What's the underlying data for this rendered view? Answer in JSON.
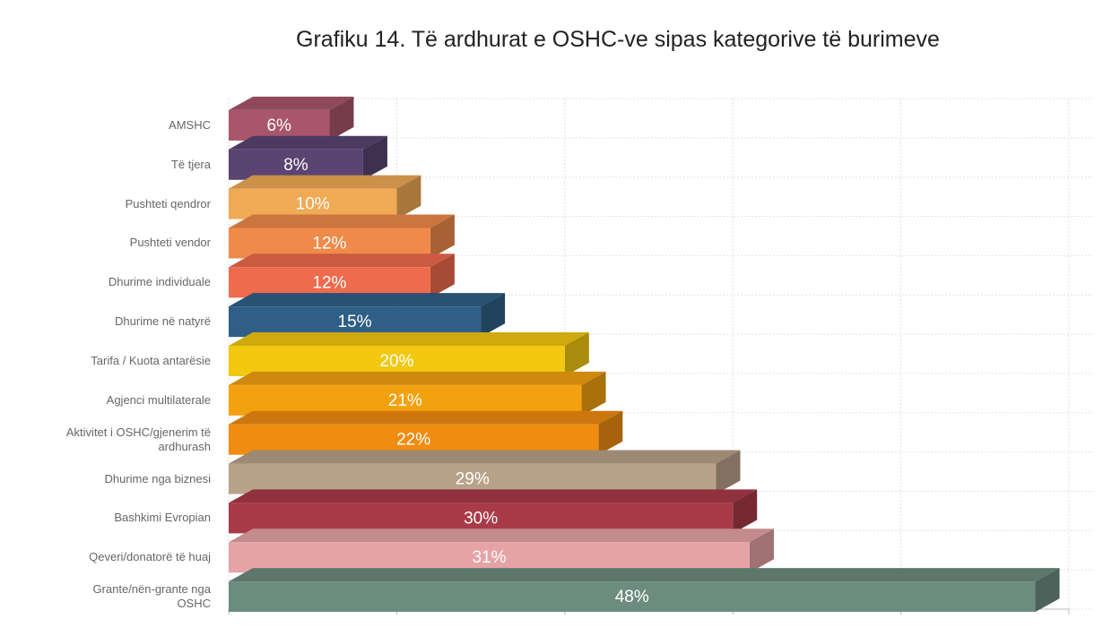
{
  "chart_data": {
    "type": "bar3d_horizontal",
    "title": "Grafiku 14. Të ardhurat e OSHC-ve sipas kategorive të burimeve",
    "categories": [
      "AMSHC",
      "Të tjera",
      "Pushteti qendror",
      "Pushteti vendor",
      "Dhurime individuale",
      "Dhurime në natyrë",
      "Tarifa / Kuota antarësie",
      "Agjenci multilaterale",
      "Aktivitet i OSHC/gjenerim të ardhurash",
      "Dhurime nga biznesi",
      "Bashkimi Evropian",
      "Qeveri/donatorë të huaj",
      "Grante/nën-grante nga OSHC"
    ],
    "values": [
      6,
      8,
      10,
      12,
      12,
      15,
      20,
      21,
      22,
      29,
      30,
      31,
      48
    ],
    "value_labels": [
      "6%",
      "8%",
      "10%",
      "12%",
      "12%",
      "15%",
      "20%",
      "21%",
      "22%",
      "29%",
      "30%",
      "31%",
      "48%"
    ],
    "colors": [
      "#a9566a",
      "#5a4471",
      "#f0aa55",
      "#f08a4a",
      "#ee6b4d",
      "#2f5f86",
      "#f2c811",
      "#f3a10f",
      "#f08c10",
      "#b9a28a",
      "#a93a48",
      "#e6a3a6",
      "#6d8c80"
    ],
    "xlim": [
      0,
      50
    ],
    "xticks": [
      0,
      10,
      20,
      30,
      40,
      50
    ],
    "grid": true
  }
}
